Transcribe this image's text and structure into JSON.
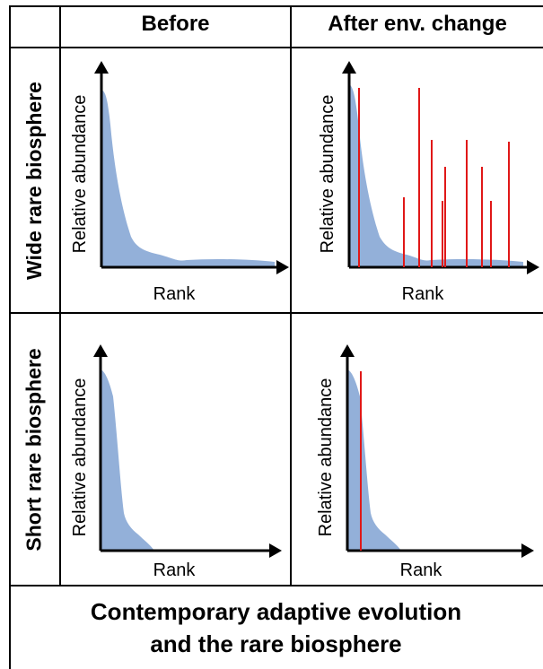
{
  "columns": {
    "before": "Before",
    "after": "After env. change"
  },
  "rows": {
    "wide": "Wide rare biosphere",
    "short": "Short rare biosphere"
  },
  "axes": {
    "y_label": "Relative abundance",
    "x_label": "Rank"
  },
  "caption": {
    "line1": "Contemporary adaptive evolution",
    "line2": "and the rare biosphere"
  },
  "colors": {
    "distribution": "#93b0d9",
    "highlight": "#e01818",
    "axis": "#000000"
  }
}
